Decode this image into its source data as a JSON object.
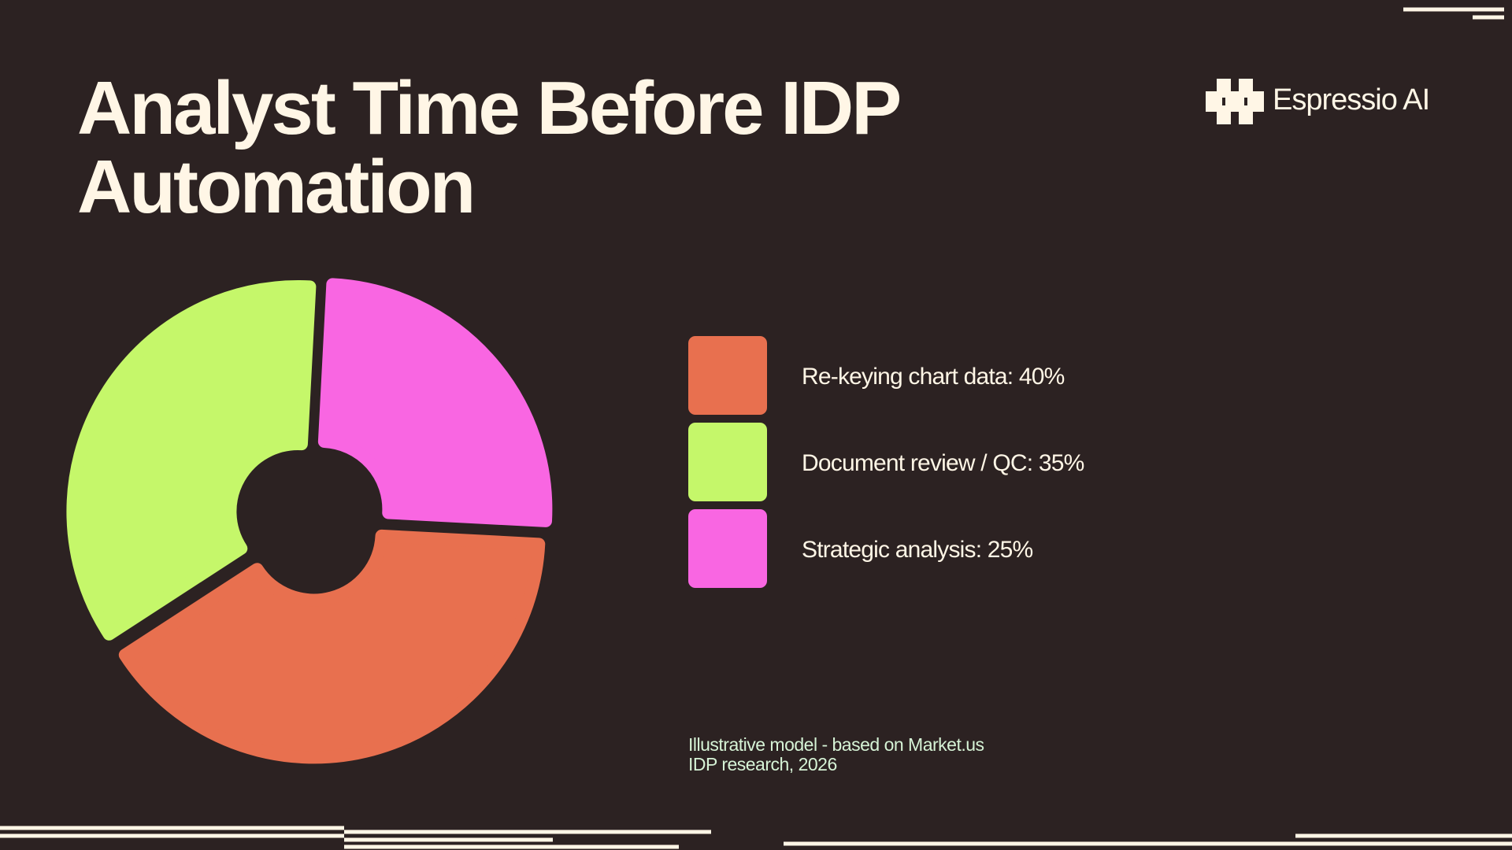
{
  "header": {
    "brand": "Espressio AI"
  },
  "chart_data": {
    "type": "pie",
    "title": "Analyst Time Before IDP Automation",
    "categories": [
      "Re-keying chart data: 40%",
      "Document review / QC: 35%",
      "Strategic analysis: 25%"
    ],
    "values": [
      40,
      35,
      25
    ],
    "colors": [
      "#e8704f",
      "#c5f76a",
      "#f966e2"
    ]
  },
  "note": [
    "Illustrative model - based on Market.us",
    "IDP research, 2026"
  ]
}
